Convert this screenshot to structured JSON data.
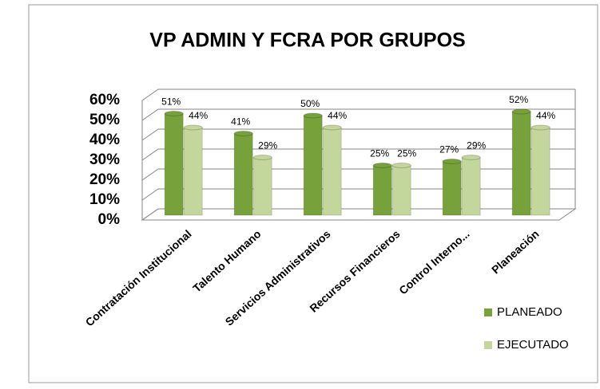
{
  "chart_data": {
    "type": "bar3d",
    "title": "VP ADMIN Y FCRA POR GRUPOS",
    "categories": [
      "Contratación Institucional",
      "Talento Humano",
      "Servicios Administrativos",
      "Recursos Financieros",
      "Control Interno...",
      "Planeación"
    ],
    "series": [
      {
        "name": "PLANEADO",
        "color": "#77a13a",
        "values": [
          51,
          41,
          50,
          25,
          27,
          52
        ],
        "value_labels": [
          "51%",
          "41%",
          "50%",
          "25%",
          "27%",
          "52%"
        ]
      },
      {
        "name": "EJECUTADO",
        "color": "#c3d69b",
        "values": [
          44,
          29,
          44,
          25,
          29,
          44
        ],
        "value_labels": [
          "44%",
          "29%",
          "44%",
          "25%",
          "29%",
          "44%"
        ]
      }
    ],
    "ylim": [
      0,
      60
    ],
    "yticks": [
      {
        "value": 0,
        "label": "0%"
      },
      {
        "value": 10,
        "label": "10%"
      },
      {
        "value": 20,
        "label": "20%"
      },
      {
        "value": 30,
        "label": "30%"
      },
      {
        "value": 40,
        "label": "40%"
      },
      {
        "value": 50,
        "label": "50%"
      },
      {
        "value": 60,
        "label": "60%"
      }
    ],
    "grid": true,
    "legend": "right"
  }
}
